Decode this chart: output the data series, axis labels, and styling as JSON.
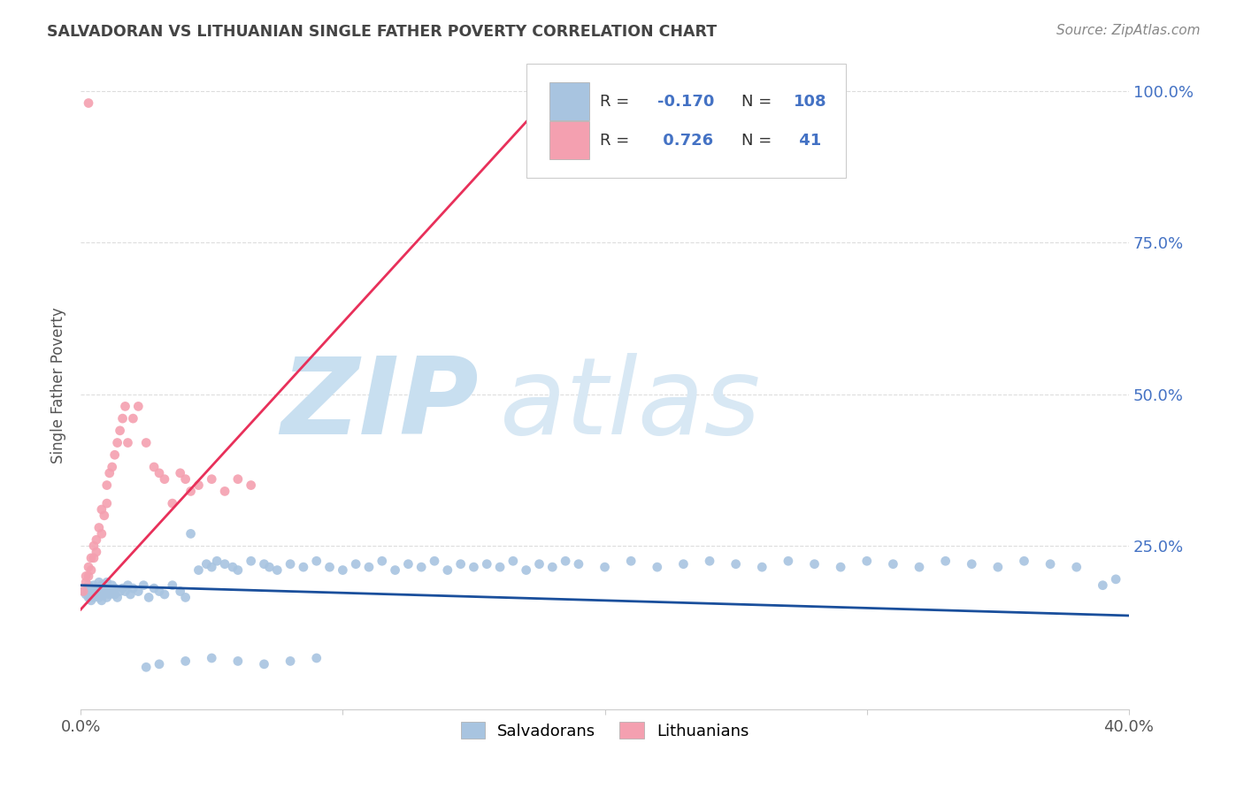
{
  "title": "SALVADORAN VS LITHUANIAN SINGLE FATHER POVERTY CORRELATION CHART",
  "source": "Source: ZipAtlas.com",
  "ylabel": "Single Father Poverty",
  "salvadoran_R": -0.17,
  "salvadoran_N": 108,
  "lithuanian_R": 0.726,
  "lithuanian_N": 41,
  "salvadoran_color": "#a8c4e0",
  "lithuanian_color": "#f4a0b0",
  "salvadoran_line_color": "#1a4f9c",
  "lithuanian_line_color": "#e8305a",
  "watermark_ZIP_color": "#c8dff0",
  "watermark_atlas_color": "#d8e8f4",
  "background_color": "#ffffff",
  "grid_color": "#dddddd",
  "title_color": "#444444",
  "right_axis_color": "#4472c4",
  "legend_R_color": "#333333",
  "legend_N_color": "#4472c4",
  "xlim": [
    0.0,
    0.4
  ],
  "ylim": [
    -0.02,
    1.05
  ],
  "lith_line_x0": 0.0,
  "lith_line_y0": 0.145,
  "lith_line_x1": 0.185,
  "lith_line_y1": 1.02,
  "salv_line_x0": 0.0,
  "salv_line_y0": 0.185,
  "salv_line_x1": 0.4,
  "salv_line_y1": 0.135,
  "salvadoran_x": [
    0.001,
    0.002,
    0.003,
    0.003,
    0.004,
    0.004,
    0.005,
    0.005,
    0.005,
    0.006,
    0.006,
    0.007,
    0.007,
    0.007,
    0.008,
    0.008,
    0.008,
    0.009,
    0.009,
    0.01,
    0.01,
    0.01,
    0.011,
    0.011,
    0.012,
    0.012,
    0.013,
    0.013,
    0.014,
    0.015,
    0.016,
    0.017,
    0.018,
    0.019,
    0.02,
    0.022,
    0.024,
    0.026,
    0.028,
    0.03,
    0.032,
    0.035,
    0.038,
    0.04,
    0.042,
    0.045,
    0.048,
    0.05,
    0.052,
    0.055,
    0.058,
    0.06,
    0.065,
    0.07,
    0.072,
    0.075,
    0.08,
    0.085,
    0.09,
    0.095,
    0.1,
    0.105,
    0.11,
    0.115,
    0.12,
    0.125,
    0.13,
    0.135,
    0.14,
    0.145,
    0.15,
    0.155,
    0.16,
    0.165,
    0.17,
    0.175,
    0.18,
    0.185,
    0.19,
    0.2,
    0.21,
    0.22,
    0.23,
    0.24,
    0.25,
    0.26,
    0.27,
    0.28,
    0.29,
    0.3,
    0.31,
    0.32,
    0.33,
    0.34,
    0.35,
    0.36,
    0.37,
    0.38,
    0.39,
    0.395,
    0.025,
    0.03,
    0.04,
    0.05,
    0.06,
    0.07,
    0.08,
    0.09
  ],
  "salvadoran_y": [
    0.175,
    0.17,
    0.165,
    0.185,
    0.16,
    0.18,
    0.175,
    0.165,
    0.185,
    0.17,
    0.18,
    0.165,
    0.175,
    0.19,
    0.16,
    0.175,
    0.185,
    0.17,
    0.18,
    0.165,
    0.175,
    0.19,
    0.17,
    0.18,
    0.175,
    0.185,
    0.17,
    0.18,
    0.165,
    0.175,
    0.18,
    0.175,
    0.185,
    0.17,
    0.18,
    0.175,
    0.185,
    0.165,
    0.18,
    0.175,
    0.17,
    0.185,
    0.175,
    0.165,
    0.27,
    0.21,
    0.22,
    0.215,
    0.225,
    0.22,
    0.215,
    0.21,
    0.225,
    0.22,
    0.215,
    0.21,
    0.22,
    0.215,
    0.225,
    0.215,
    0.21,
    0.22,
    0.215,
    0.225,
    0.21,
    0.22,
    0.215,
    0.225,
    0.21,
    0.22,
    0.215,
    0.22,
    0.215,
    0.225,
    0.21,
    0.22,
    0.215,
    0.225,
    0.22,
    0.215,
    0.225,
    0.215,
    0.22,
    0.225,
    0.22,
    0.215,
    0.225,
    0.22,
    0.215,
    0.225,
    0.22,
    0.215,
    0.225,
    0.22,
    0.215,
    0.225,
    0.22,
    0.215,
    0.185,
    0.195,
    0.05,
    0.055,
    0.06,
    0.065,
    0.06,
    0.055,
    0.06,
    0.065
  ],
  "lithuanian_x": [
    0.001,
    0.002,
    0.002,
    0.003,
    0.003,
    0.004,
    0.004,
    0.005,
    0.005,
    0.006,
    0.006,
    0.007,
    0.008,
    0.008,
    0.009,
    0.01,
    0.01,
    0.011,
    0.012,
    0.013,
    0.014,
    0.015,
    0.016,
    0.017,
    0.018,
    0.02,
    0.022,
    0.025,
    0.028,
    0.03,
    0.032,
    0.035,
    0.038,
    0.04,
    0.042,
    0.045,
    0.05,
    0.055,
    0.06,
    0.065,
    0.003
  ],
  "lithuanian_y": [
    0.175,
    0.19,
    0.2,
    0.2,
    0.215,
    0.21,
    0.23,
    0.23,
    0.25,
    0.24,
    0.26,
    0.28,
    0.27,
    0.31,
    0.3,
    0.32,
    0.35,
    0.37,
    0.38,
    0.4,
    0.42,
    0.44,
    0.46,
    0.48,
    0.42,
    0.46,
    0.48,
    0.42,
    0.38,
    0.37,
    0.36,
    0.32,
    0.37,
    0.36,
    0.34,
    0.35,
    0.36,
    0.34,
    0.36,
    0.35,
    0.98
  ]
}
